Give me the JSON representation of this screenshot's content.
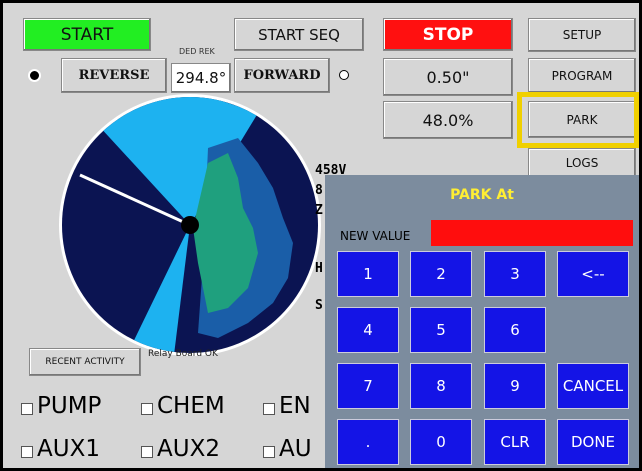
{
  "buttons": {
    "start": "START",
    "start_seq": "START SEQ",
    "stop": "STOP",
    "setup": "SETUP",
    "reverse": "REVERSE",
    "forward": "FORWARD",
    "program": "PROGRAM",
    "park": "PARK",
    "logs": "LOGS",
    "recent_activity": "RECENT ACTIVITY"
  },
  "ded_rek": {
    "label": "DED REK",
    "value": "294.8°"
  },
  "readouts": {
    "inches": "0.50\"",
    "percent": "48.0%"
  },
  "side_labels": [
    "458V",
    "8",
    "Z",
    "H",
    "S"
  ],
  "status": "Relay Board OK",
  "checkboxes": [
    [
      "PUMP",
      "CHEM",
      "EN"
    ],
    [
      "AUX1",
      "AUX2",
      "AU"
    ]
  ],
  "dialog": {
    "title": "PARK At",
    "field_label": "NEW VALUE",
    "keys": [
      [
        "1",
        "2",
        "3",
        "<--"
      ],
      [
        "4",
        "5",
        "6",
        null
      ],
      [
        "7",
        "8",
        "9",
        "CANCEL"
      ],
      [
        ".",
        "0",
        "CLR",
        "DONE"
      ]
    ]
  }
}
